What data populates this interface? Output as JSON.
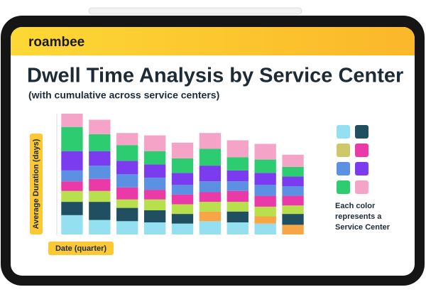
{
  "header": {
    "brand": "roambee"
  },
  "chart_data": {
    "type": "bar",
    "stacked": true,
    "title": "Dwell Time Analysis by Service Center",
    "subtitle": "(with cumulative across service centers)",
    "y_label": "Average Duration (days)",
    "x_label": "Date (quarter)",
    "annotation": [
      "Each color",
      "represents a",
      "Service Center"
    ],
    "categories": [
      null,
      null,
      null,
      null,
      null,
      null,
      null,
      null,
      null
    ],
    "ylim": [
      0,
      100
    ],
    "series": [
      {
        "color": "#94dff0",
        "values": [
          16,
          12,
          11,
          10,
          9,
          11,
          10,
          9,
          0
        ]
      },
      {
        "color": "#f7a545",
        "values": [
          0,
          0,
          0,
          0,
          0,
          8,
          0,
          6,
          8
        ]
      },
      {
        "color": "#1f4f60",
        "values": [
          11,
          15,
          11,
          10,
          8,
          0,
          9,
          0,
          9
        ]
      },
      {
        "color": "#b7e04c",
        "values": [
          9,
          9,
          7,
          9,
          8,
          8,
          8,
          8,
          7
        ]
      },
      {
        "color": "#e93aa7",
        "values": [
          8,
          10,
          10,
          8,
          8,
          8,
          9,
          9,
          8
        ]
      },
      {
        "color": "#5b90e2",
        "values": [
          9,
          11,
          11,
          10,
          8,
          9,
          8,
          9,
          8
        ]
      },
      {
        "color": "#7b3bee",
        "values": [
          16,
          12,
          11,
          11,
          10,
          13,
          9,
          10,
          8
        ]
      },
      {
        "color": "#2ecc71",
        "values": [
          20,
          14,
          13,
          11,
          12,
          14,
          11,
          11,
          8
        ]
      },
      {
        "color": "#f5a4c8",
        "values": [
          11,
          12,
          10,
          13,
          13,
          13,
          14,
          13,
          10
        ]
      }
    ],
    "legend_colors": [
      "#94dff0",
      "#1f4f60",
      "#cfc86a",
      "#e93aa7",
      "#5b90e2",
      "#7b3bee",
      "#2ecc71",
      "#f5a4c8"
    ]
  }
}
